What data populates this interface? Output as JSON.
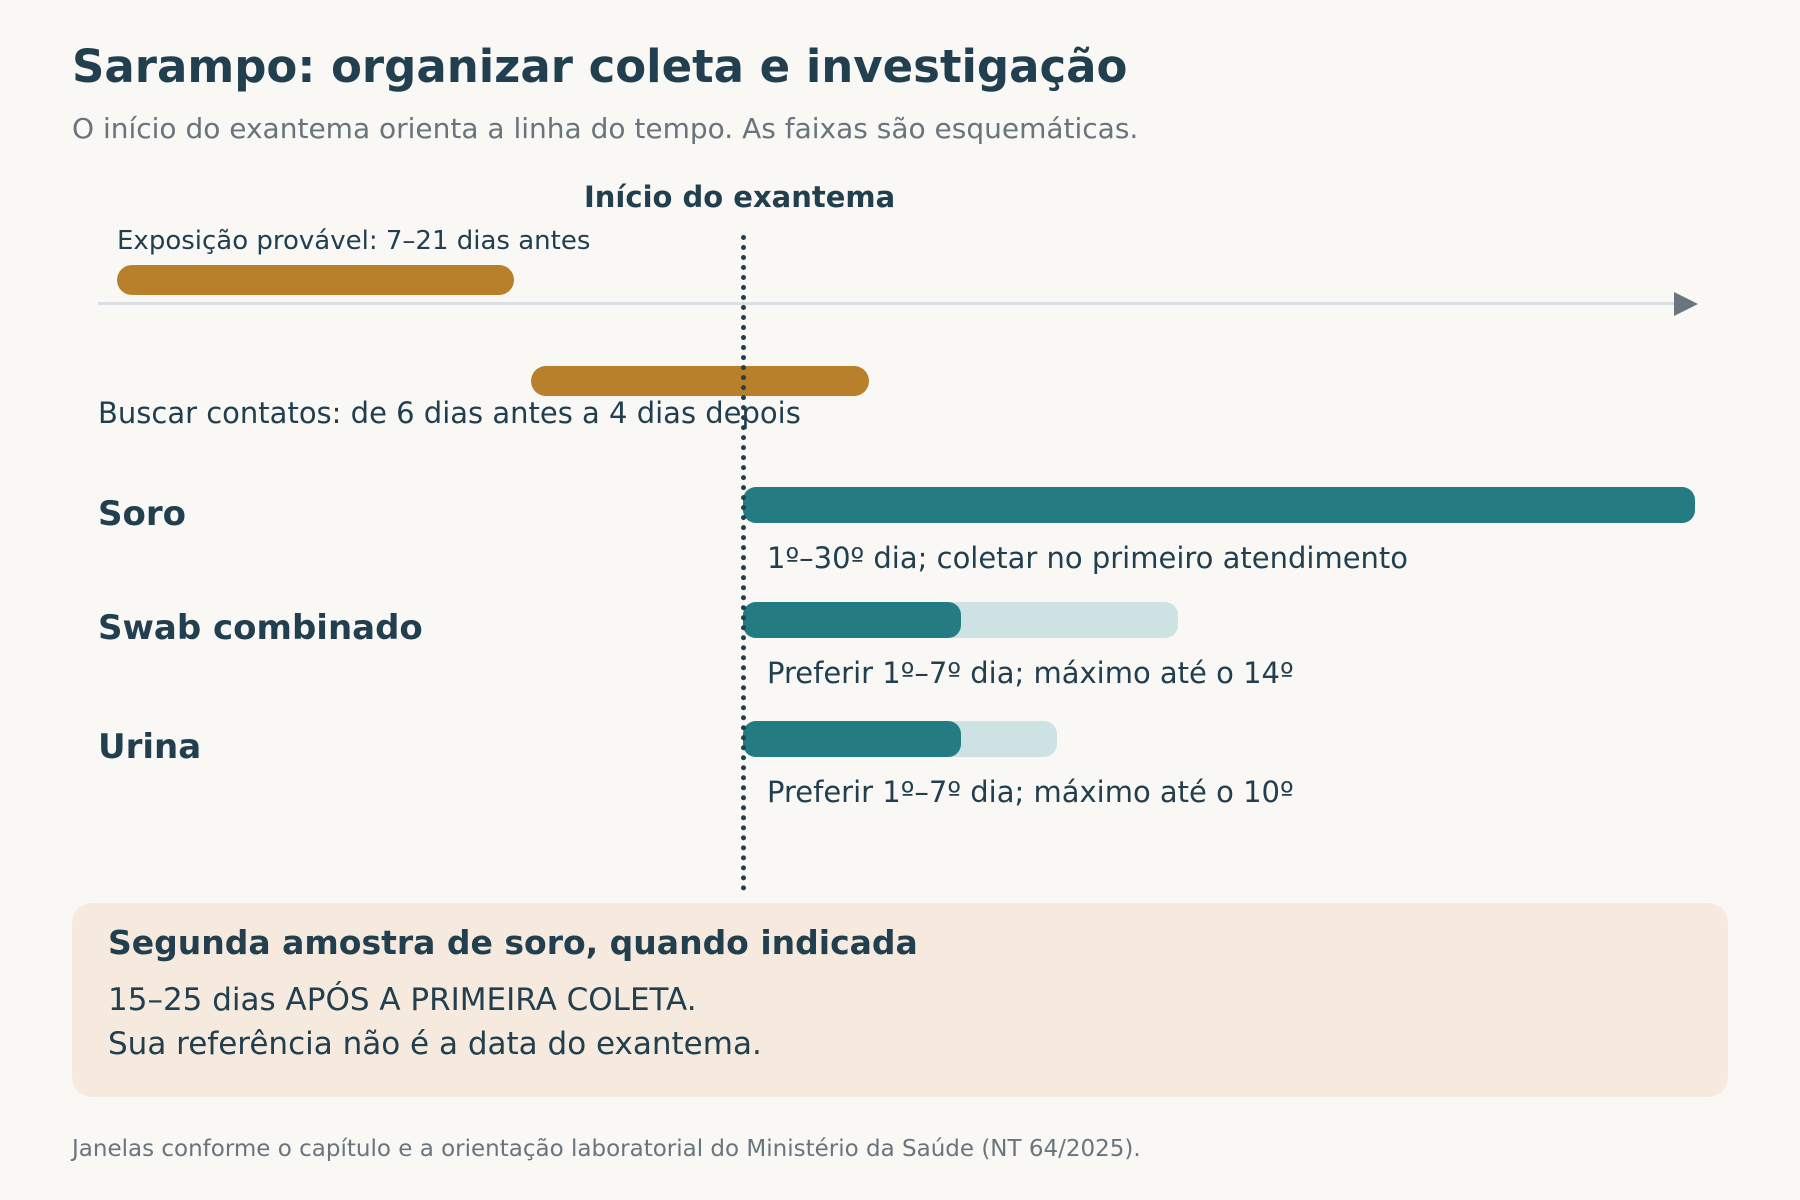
{
  "title": "Sarampo: organizar coleta e investigação",
  "subtitle": "O início do exantema orienta a linha do tempo. As faixas são esquemáticas.",
  "onset_label": "Início do exantema",
  "exposure": {
    "label": "Exposição provável: 7–21 dias antes",
    "color": "#b8802a"
  },
  "contacts": {
    "label": "Buscar contatos: de 6 dias antes a 4 dias depois",
    "color": "#b8802a"
  },
  "samples": [
    {
      "name": "Soro",
      "note": "1º–30º dia; coletar no primeiro atendimento",
      "preferred_fraction": 1.0,
      "max_fraction": 1.0
    },
    {
      "name": "Swab combinado",
      "note": "Preferir 1º–7º dia; máximo até o 14º",
      "preferred_fraction": 0.5,
      "max_fraction": 1.0
    },
    {
      "name": "Urina",
      "note": "Preferir 1º–7º dia; máximo até o 10º",
      "preferred_fraction": 0.7,
      "max_fraction": 1.0
    }
  ],
  "colors": {
    "preferred": "#247b81",
    "maximum": "#cde3e3",
    "exposure": "#b8802a",
    "callout_bg": "#f5eadd"
  },
  "callout": {
    "title": "Segunda amostra de soro, quando indicada",
    "line1": "15–25 dias APÓS A PRIMEIRA COLETA.",
    "line2": "Sua referência não é a data do exantema."
  },
  "footer": "Janelas conforme o capítulo e a orientação laboratorial do Ministério da Saúde (NT 64/2025)."
}
